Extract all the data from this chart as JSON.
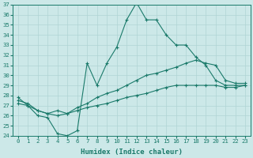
{
  "title": "",
  "xlabel": "Humidex (Indice chaleur)",
  "ylabel": "",
  "bg_color": "#cce8e8",
  "line_color": "#1a7a6a",
  "grid_color": "#b0d4d4",
  "x": [
    0,
    1,
    2,
    3,
    4,
    5,
    6,
    7,
    8,
    9,
    10,
    11,
    12,
    13,
    14,
    15,
    16,
    17,
    18,
    19,
    20,
    21,
    22,
    23
  ],
  "line1": [
    27.8,
    27.0,
    26.0,
    25.8,
    24.2,
    24.0,
    24.5,
    31.2,
    29.0,
    31.2,
    32.8,
    35.5,
    37.2,
    35.5,
    35.5,
    34.0,
    33.0,
    33.0,
    31.8,
    31.0,
    29.5,
    29.0,
    29.0,
    29.0
  ],
  "line2": [
    27.5,
    27.2,
    26.5,
    26.2,
    26.5,
    26.2,
    26.8,
    27.2,
    27.8,
    28.2,
    28.5,
    29.0,
    29.5,
    30.0,
    30.2,
    30.5,
    30.8,
    31.2,
    31.5,
    31.2,
    31.0,
    29.5,
    29.2,
    29.2
  ],
  "line3": [
    27.2,
    27.0,
    26.5,
    26.2,
    26.0,
    26.2,
    26.5,
    26.8,
    27.0,
    27.2,
    27.5,
    27.8,
    28.0,
    28.2,
    28.5,
    28.8,
    29.0,
    29.0,
    29.0,
    29.0,
    29.0,
    28.8,
    28.8,
    29.0
  ],
  "ylim": [
    24,
    37
  ],
  "xlim": [
    -0.5,
    23.5
  ],
  "yticks": [
    24,
    25,
    26,
    27,
    28,
    29,
    30,
    31,
    32,
    33,
    34,
    35,
    36,
    37
  ],
  "xticks": [
    0,
    1,
    2,
    3,
    4,
    5,
    6,
    7,
    8,
    9,
    10,
    11,
    12,
    13,
    14,
    15,
    16,
    17,
    18,
    19,
    20,
    21,
    22,
    23
  ],
  "tick_fontsize": 5.2,
  "xlabel_fontsize": 6.5
}
